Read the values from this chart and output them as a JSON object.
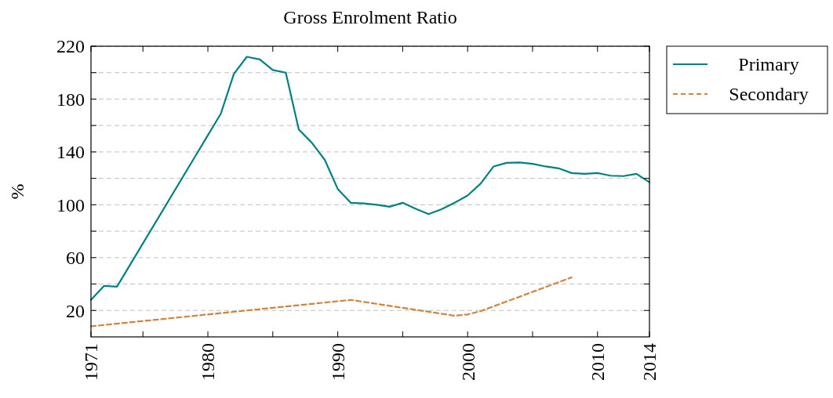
{
  "chart_data": {
    "type": "line",
    "title": "Gross Enrolment Ratio",
    "ylabel": "%",
    "xlim": [
      1971,
      2014
    ],
    "xticks": [
      1971,
      {
        "value": 1975,
        "label": null
      },
      1980,
      {
        "value": 1985,
        "label": null
      },
      1990,
      {
        "value": 1995,
        "label": null
      },
      2000,
      {
        "value": 2005,
        "label": null
      },
      2010,
      2014
    ],
    "ylim": [
      0,
      220
    ],
    "yticks": [
      20,
      {
        "value": 40,
        "label": null
      },
      60,
      {
        "value": 80,
        "label": null
      },
      100,
      {
        "value": 120,
        "label": null
      },
      140,
      {
        "value": 160,
        "label": null
      },
      180,
      {
        "value": 200,
        "label": null
      },
      220
    ],
    "grid": "y",
    "legend": "top right",
    "series": [
      {
        "name": "Primary",
        "color": "#008080",
        "line_style": "solid",
        "x": [
          1971,
          1972,
          1973,
          1981,
          1982,
          1983,
          1984,
          1985,
          1986,
          1987,
          1988,
          1989,
          1990,
          1991,
          1992,
          1993,
          1994,
          1995,
          1996,
          1997,
          1998,
          1999,
          2000,
          2001,
          2002,
          2003,
          2004,
          2005,
          2006,
          2007,
          2008,
          2009,
          2010,
          2011,
          2012,
          2013,
          2014
        ],
        "values": [
          28,
          38.6,
          38,
          169,
          199,
          212,
          210,
          202,
          200,
          157,
          147,
          134,
          112,
          101.5,
          101,
          100,
          98.5,
          101.5,
          97,
          93,
          96.7,
          101.5,
          107,
          116,
          129,
          131.7,
          132,
          131,
          129,
          127.6,
          124,
          123.4,
          124,
          122,
          121.7,
          123.4,
          117
        ]
      },
      {
        "name": "Secondary",
        "color": "#cd853f",
        "line_style": "dashed",
        "x": [
          1971,
          1981,
          1986,
          1991,
          1999,
          2000,
          2001,
          2008
        ],
        "values": [
          8,
          18,
          23,
          28,
          16,
          17,
          19.5,
          45
        ]
      }
    ]
  }
}
